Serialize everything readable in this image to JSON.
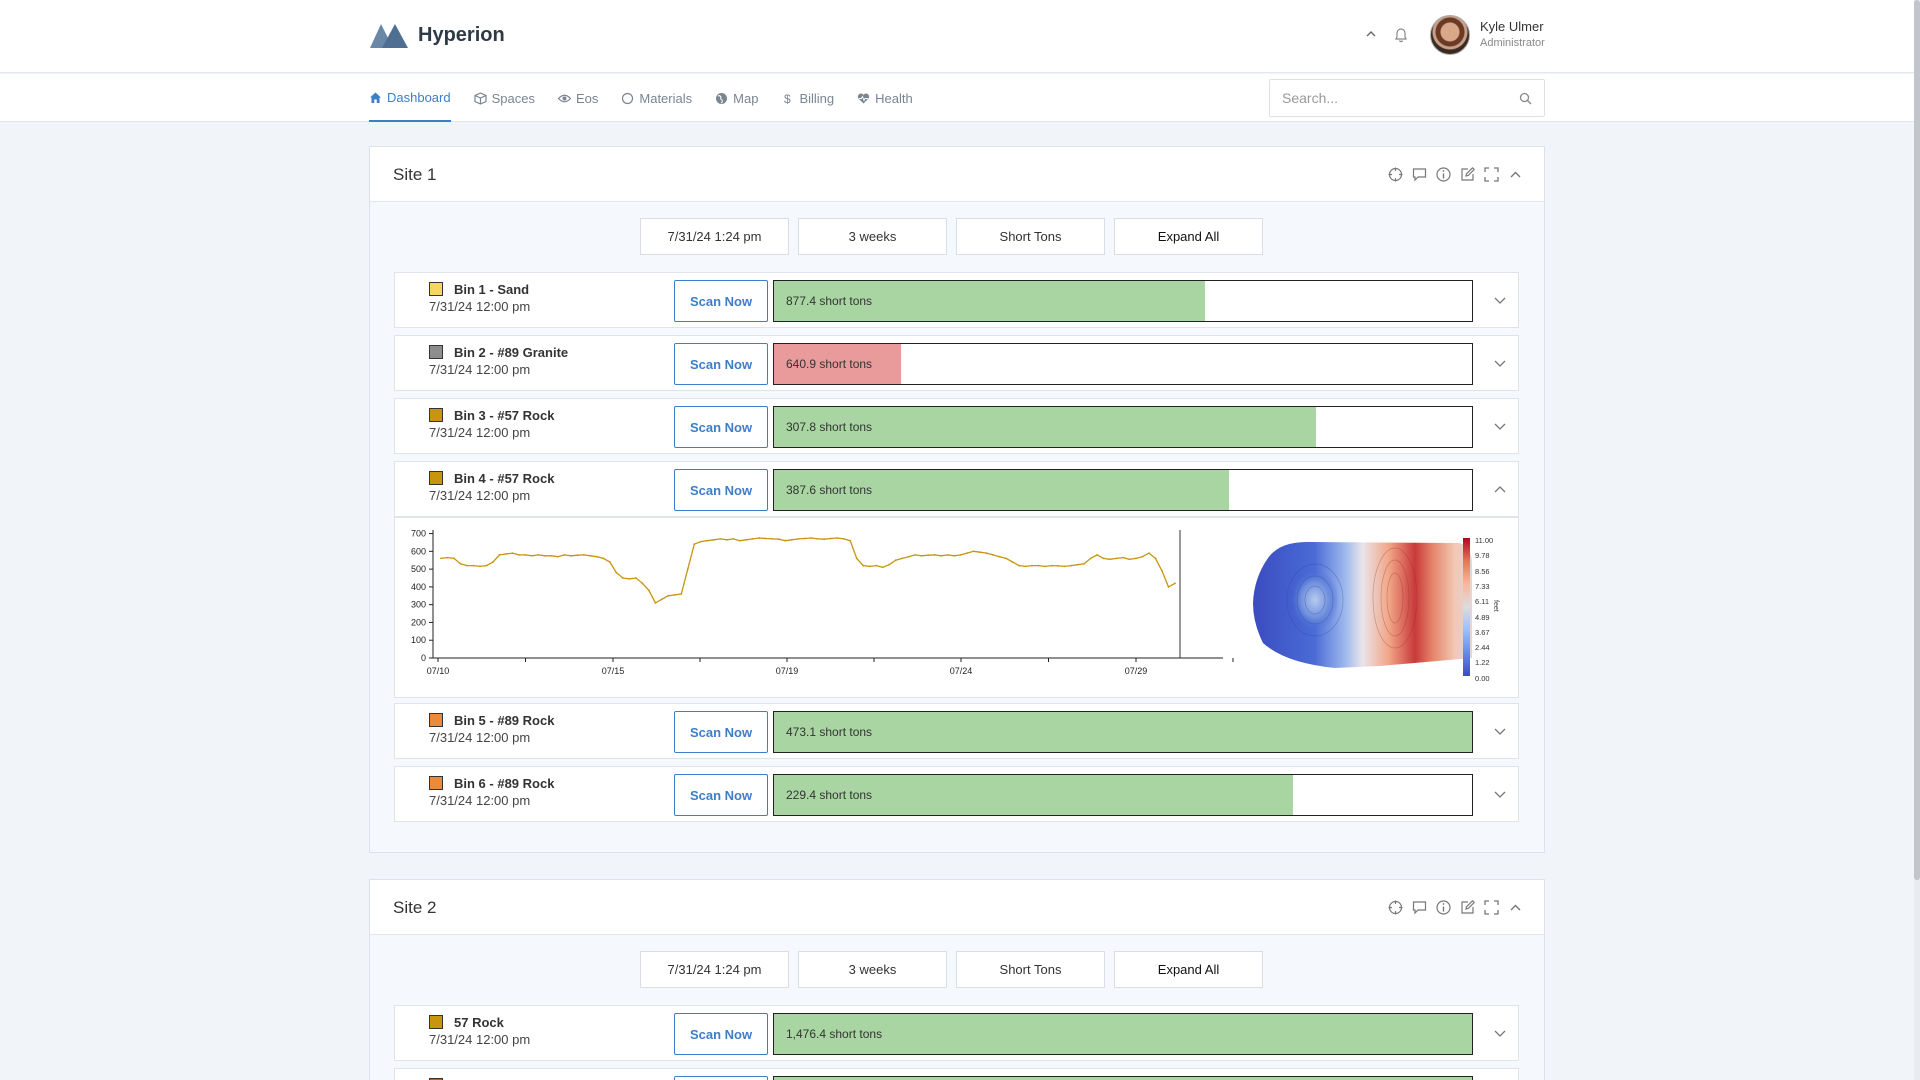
{
  "app": {
    "title": "Hyperion"
  },
  "user": {
    "name": "Kyle Ulmer",
    "role": "Administrator"
  },
  "nav": [
    {
      "label": "Dashboard",
      "icon": "home-icon",
      "active": true
    },
    {
      "label": "Spaces",
      "icon": "cube-icon"
    },
    {
      "label": "Eos",
      "icon": "eye-icon"
    },
    {
      "label": "Materials",
      "icon": "circle-icon"
    },
    {
      "label": "Map",
      "icon": "globe-icon"
    },
    {
      "label": "Billing",
      "icon": "dollar-icon"
    },
    {
      "label": "Health",
      "icon": "heart-icon"
    }
  ],
  "search": {
    "placeholder": "Search..."
  },
  "sites": [
    {
      "title": "Site 1",
      "controls": {
        "date": "7/31/24 1:24 pm",
        "range": "3 weeks",
        "units": "Short Tons",
        "expand": "Expand All"
      },
      "bins": [
        {
          "name": "Bin 1 - Sand",
          "date": "7/31/24 12:00 pm",
          "swatch": "#f6d65f",
          "value": "877.4 short tons",
          "fill": 0.617,
          "status": "ok",
          "expanded": false
        },
        {
          "name": "Bin 2 - #89 Granite",
          "date": "7/31/24 12:00 pm",
          "swatch": "#8d8d8d",
          "value": "640.9 short tons",
          "fill": 0.182,
          "status": "low",
          "expanded": false
        },
        {
          "name": "Bin 3 - #57 Rock",
          "date": "7/31/24 12:00 pm",
          "swatch": "#c8950f",
          "value": "307.8 short tons",
          "fill": 0.777,
          "status": "ok",
          "expanded": false
        },
        {
          "name": "Bin 4 - #57 Rock",
          "date": "7/31/24 12:00 pm",
          "swatch": "#c8950f",
          "value": "387.6 short tons",
          "fill": 0.652,
          "status": "ok",
          "expanded": true
        },
        {
          "name": "Bin 5 - #89 Rock",
          "date": "7/31/24 12:00 pm",
          "swatch": "#ec8a3c",
          "value": "473.1 short tons",
          "fill": 1.0,
          "status": "ok",
          "expanded": false
        },
        {
          "name": "Bin 6 - #89 Rock",
          "date": "7/31/24 12:00 pm",
          "swatch": "#ec8a3c",
          "value": "229.4 short tons",
          "fill": 0.744,
          "status": "ok",
          "expanded": false
        }
      ]
    },
    {
      "title": "Site 2",
      "controls": {
        "date": "7/31/24 1:24 pm",
        "range": "3 weeks",
        "units": "Short Tons",
        "expand": "Expand All"
      },
      "bins": [
        {
          "name": "57 Rock",
          "date": "7/31/24 12:00 pm",
          "swatch": "#c8950f",
          "value": "1,476.4 short tons",
          "fill": 1.0,
          "status": "ok",
          "expanded": false
        },
        {
          "name": "",
          "date": "",
          "swatch": "#c8620f",
          "value": "",
          "fill": 1.0,
          "status": "ok",
          "expanded": false
        }
      ]
    }
  ],
  "scan_label": "Scan Now",
  "chart_data": [
    {
      "type": "line",
      "title": "",
      "xlabel": "",
      "ylabel": "",
      "x_ticks": [
        "07/10",
        "07/15",
        "07/19",
        "07/24",
        "07/29"
      ],
      "y_ticks": [
        0,
        100,
        200,
        300,
        400,
        500,
        600,
        700
      ],
      "ylim": [
        0,
        720
      ],
      "x_range": [
        "07/10",
        "08/01"
      ],
      "color": "#c8950f",
      "series": [
        {
          "values": [
            560,
            565,
            560,
            530,
            520,
            520,
            515,
            520,
            540,
            580,
            585,
            590,
            580,
            580,
            575,
            580,
            575,
            575,
            570,
            580,
            575,
            578,
            580,
            575,
            570,
            560,
            540,
            480,
            450,
            445,
            450,
            420,
            380,
            310,
            330,
            350,
            355,
            360,
            500,
            640,
            655,
            660,
            665,
            670,
            665,
            670,
            660,
            665,
            670,
            675,
            672,
            670,
            668,
            660,
            665,
            670,
            672,
            675,
            670,
            668,
            672,
            675,
            670,
            660,
            560,
            520,
            515,
            520,
            510,
            525,
            550,
            560,
            570,
            580,
            575,
            578,
            580,
            575,
            580,
            575,
            580,
            590,
            600,
            595,
            590,
            580,
            570,
            560,
            540,
            520,
            515,
            520,
            520,
            515,
            520,
            518,
            515,
            520,
            525,
            530,
            560,
            580,
            560,
            555,
            560,
            565,
            555,
            560,
            570,
            590,
            560,
            490,
            400,
            420
          ]
        }
      ]
    },
    {
      "type": "heatmap",
      "colorbar_ticks": [
        "11.00",
        "9.78",
        "8.56",
        "7.33",
        "6.11",
        "4.89",
        "3.67",
        "2.44",
        "1.22",
        "0.00"
      ],
      "colorbar_label": "feet"
    }
  ]
}
